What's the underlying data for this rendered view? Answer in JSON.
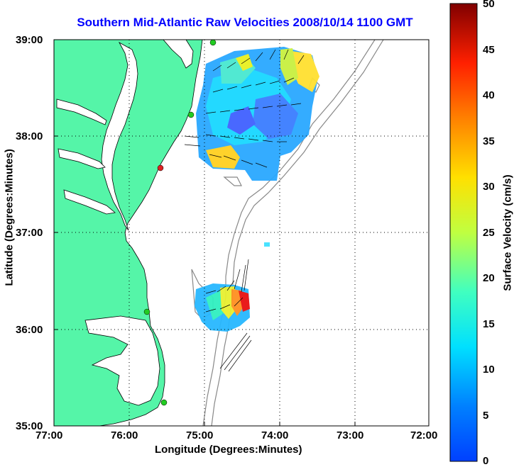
{
  "title": "Southern Mid-Atlantic Raw Velocities 2008/10/14 1100 GMT",
  "axes": {
    "xlabel": "Longitude (Degrees:Minutes)",
    "ylabel": "Latitude (Degrees:Minutes)",
    "x_ticks": [
      "77:00",
      "76:00",
      "75:00",
      "74:00",
      "73:00",
      "72:00"
    ],
    "y_ticks": [
      "39:00",
      "38:00",
      "37:00",
      "36:00",
      "35:00"
    ],
    "x_range_deg_west": [
      77,
      72
    ],
    "y_range_deg_north": [
      35,
      39
    ],
    "grid": "dotted"
  },
  "colorbar": {
    "label": "Surface Velocity (cm/s)",
    "ticks": [
      "50",
      "45",
      "40",
      "35",
      "30",
      "25",
      "20",
      "15",
      "10",
      "5",
      "0"
    ],
    "range": [
      0,
      50
    ],
    "colormap": "jet"
  },
  "colors": {
    "land": "#55f5a8",
    "title": "#0000ff",
    "station_active": "#22cc22",
    "station_offline": "#dd2222",
    "bathymetry": "#888888"
  }
}
